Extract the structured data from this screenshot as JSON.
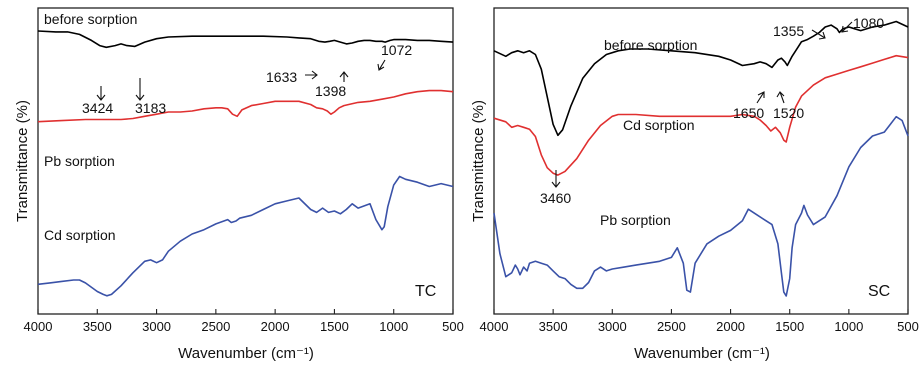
{
  "chart_data": [
    {
      "type": "line",
      "panel_label": "TC",
      "xlabel": "Wavenumber (cm⁻¹)",
      "ylabel": "Transmittance (%)",
      "xlim": [
        4000,
        500
      ],
      "xticks": [
        4000,
        3500,
        3000,
        2500,
        2000,
        1500,
        1000,
        500
      ],
      "series": [
        {
          "name": "before sorption",
          "color": "#000000",
          "x": [
            4000,
            3850,
            3750,
            3650,
            3550,
            3480,
            3424,
            3350,
            3300,
            3250,
            3183,
            3100,
            3000,
            2900,
            2700,
            2500,
            2300,
            2100,
            1900,
            1800,
            1700,
            1633,
            1580,
            1540,
            1500,
            1450,
            1398,
            1350,
            1300,
            1250,
            1200,
            1150,
            1100,
            1072,
            1030,
            1000,
            900,
            800,
            700,
            600,
            500
          ],
          "y": [
            91,
            90,
            90,
            87,
            80,
            74,
            72,
            74,
            76,
            74,
            73,
            78,
            82,
            84,
            85,
            85,
            85,
            85,
            84,
            83,
            82,
            79,
            78,
            79,
            80,
            78,
            76,
            77,
            79,
            80,
            80,
            79,
            79,
            78,
            80,
            81,
            81,
            80,
            80,
            79,
            78
          ]
        },
        {
          "name": "Pb sorption",
          "color": "#e03030",
          "x": [
            4000,
            3800,
            3600,
            3500,
            3400,
            3300,
            3200,
            3100,
            3000,
            2900,
            2800,
            2700,
            2600,
            2500,
            2450,
            2400,
            2360,
            2320,
            2280,
            2200,
            2100,
            2000,
            1900,
            1800,
            1700,
            1650,
            1600,
            1560,
            1530,
            1500,
            1460,
            1420,
            1380,
            1300,
            1200,
            1100,
            1000,
            900,
            800,
            700,
            600,
            500
          ],
          "y": [
            51,
            52,
            53,
            53,
            53,
            53,
            54,
            56,
            58,
            60,
            60,
            61,
            63,
            64,
            64,
            63,
            58,
            56,
            62,
            66,
            68,
            70,
            70,
            70,
            67,
            64,
            63,
            61,
            58,
            60,
            64,
            66,
            67,
            69,
            70,
            72,
            74,
            77,
            79,
            80,
            80,
            79
          ]
        },
        {
          "name": "Cd sorption",
          "color": "#3a52a8",
          "x": [
            4000,
            3900,
            3800,
            3700,
            3650,
            3600,
            3500,
            3450,
            3420,
            3380,
            3300,
            3200,
            3100,
            3050,
            3000,
            2950,
            2900,
            2800,
            2700,
            2600,
            2500,
            2400,
            2370,
            2330,
            2300,
            2200,
            2100,
            2000,
            1900,
            1800,
            1700,
            1650,
            1600,
            1550,
            1500,
            1450,
            1400,
            1350,
            1300,
            1200,
            1150,
            1100,
            1080,
            1050,
            1000,
            950,
            900,
            800,
            700,
            600,
            500
          ],
          "y": [
            10,
            11,
            12,
            13,
            13,
            11,
            5,
            3,
            2,
            3,
            9,
            18,
            26,
            27,
            25,
            27,
            33,
            40,
            45,
            48,
            52,
            55,
            53,
            54,
            56,
            58,
            62,
            66,
            68,
            70,
            62,
            60,
            63,
            60,
            61,
            59,
            62,
            66,
            63,
            66,
            55,
            48,
            50,
            64,
            79,
            85,
            83,
            81,
            78,
            80,
            78
          ]
        }
      ],
      "annotations": [
        {
          "text": "before sorption"
        },
        {
          "text": "3424"
        },
        {
          "text": "3183"
        },
        {
          "text": "1633"
        },
        {
          "text": "1398"
        },
        {
          "text": "1072"
        },
        {
          "text": "Pb sorption"
        },
        {
          "text": "Cd sorption"
        }
      ]
    },
    {
      "type": "line",
      "panel_label": "SC",
      "xlabel": "Wavenumber (cm⁻¹)",
      "ylabel": "Transmittance (%)",
      "xlim": [
        4000,
        500
      ],
      "xticks": [
        4000,
        3500,
        3000,
        2500,
        2000,
        1500,
        1000,
        500
      ],
      "series": [
        {
          "name": "before sorption",
          "color": "#000000",
          "x": [
            4000,
            3900,
            3850,
            3800,
            3750,
            3700,
            3650,
            3600,
            3550,
            3500,
            3460,
            3420,
            3350,
            3250,
            3150,
            3050,
            2950,
            2850,
            2700,
            2500,
            2300,
            2100,
            2000,
            1900,
            1800,
            1750,
            1700,
            1650,
            1600,
            1570,
            1540,
            1520,
            1480,
            1430,
            1400,
            1355,
            1300,
            1250,
            1200,
            1150,
            1100,
            1080,
            1050,
            1000,
            950,
            900,
            800,
            700,
            600,
            500
          ],
          "y": [
            80,
            77,
            79,
            80,
            79,
            80,
            78,
            70,
            55,
            40,
            34,
            37,
            50,
            65,
            73,
            78,
            80,
            81,
            81,
            80,
            79,
            77,
            75,
            72,
            73,
            74,
            73,
            71,
            75,
            76,
            74,
            72,
            77,
            82,
            85,
            86,
            88,
            90,
            93,
            94,
            92,
            90,
            92,
            93,
            92,
            91,
            93,
            94,
            96,
            93
          ]
        },
        {
          "name": "Cd sorption",
          "color": "#e03030",
          "x": [
            4000,
            3900,
            3850,
            3800,
            3750,
            3700,
            3650,
            3600,
            3550,
            3500,
            3460,
            3400,
            3300,
            3200,
            3100,
            3000,
            2950,
            2900,
            2800,
            2600,
            2400,
            2200,
            2000,
            1900,
            1800,
            1750,
            1700,
            1660,
            1620,
            1580,
            1550,
            1530,
            1500,
            1450,
            1400,
            1300,
            1200,
            1100,
            1000,
            900,
            800,
            700,
            600,
            500
          ],
          "y": [
            60,
            58,
            55,
            56,
            55,
            54,
            50,
            40,
            33,
            30,
            29,
            31,
            38,
            48,
            56,
            61,
            62,
            62,
            62,
            61,
            61,
            61,
            61,
            62,
            61,
            59,
            56,
            53,
            55,
            52,
            48,
            47,
            55,
            66,
            72,
            78,
            82,
            84,
            86,
            88,
            90,
            92,
            94,
            93
          ]
        },
        {
          "name": "Pb sorption",
          "color": "#3a52a8",
          "x": [
            4000,
            3950,
            3900,
            3850,
            3820,
            3800,
            3780,
            3750,
            3720,
            3700,
            3650,
            3600,
            3550,
            3500,
            3450,
            3400,
            3350,
            3300,
            3250,
            3200,
            3150,
            3100,
            3050,
            3000,
            2900,
            2800,
            2700,
            2600,
            2500,
            2450,
            2400,
            2370,
            2340,
            2300,
            2200,
            2100,
            2000,
            1900,
            1850,
            1800,
            1700,
            1650,
            1600,
            1570,
            1550,
            1530,
            1500,
            1480,
            1450,
            1400,
            1380,
            1350,
            1300,
            1200,
            1100,
            1000,
            900,
            800,
            700,
            650,
            600,
            550,
            500
          ],
          "y": [
            46,
            25,
            13,
            15,
            19,
            17,
            14,
            18,
            16,
            20,
            21,
            20,
            19,
            16,
            13,
            12,
            9,
            7,
            7,
            10,
            16,
            18,
            16,
            17,
            18,
            19,
            20,
            21,
            23,
            28,
            20,
            6,
            5,
            20,
            30,
            34,
            37,
            42,
            48,
            46,
            42,
            40,
            30,
            15,
            5,
            3,
            12,
            28,
            40,
            46,
            50,
            45,
            40,
            44,
            55,
            70,
            80,
            86,
            88,
            92,
            96,
            94,
            86
          ]
        }
      ],
      "annotations": [
        {
          "text": "before sorption"
        },
        {
          "text": "3460"
        },
        {
          "text": "1650"
        },
        {
          "text": "1520"
        },
        {
          "text": "1355"
        },
        {
          "text": "1080"
        },
        {
          "text": "Cd sorption"
        },
        {
          "text": "Pb sorption"
        }
      ]
    }
  ]
}
